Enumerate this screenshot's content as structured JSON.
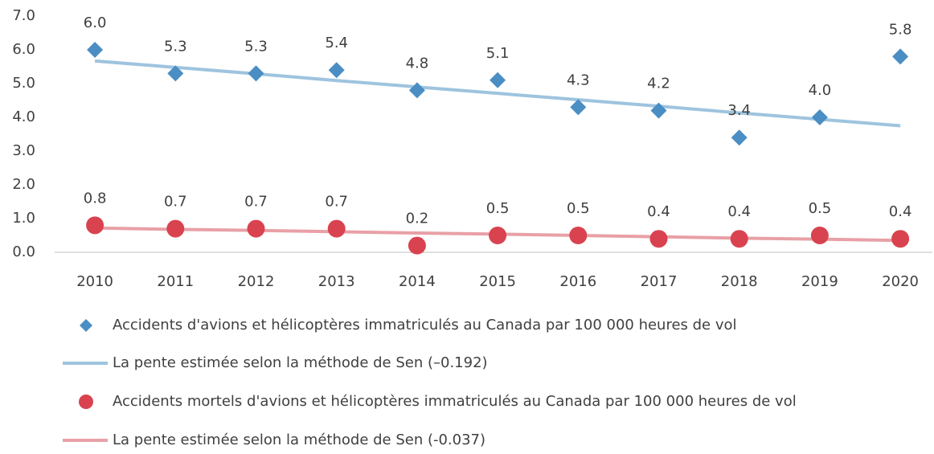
{
  "chart_data": {
    "type": "line",
    "categories": [
      "2010",
      "2011",
      "2012",
      "2013",
      "2014",
      "2015",
      "2016",
      "2017",
      "2018",
      "2019",
      "2020"
    ],
    "ylim": [
      0,
      7
    ],
    "yticks": [
      {
        "value": 0,
        "label": "0.0"
      },
      {
        "value": 1,
        "label": "1.0"
      },
      {
        "value": 2,
        "label": "2.0"
      },
      {
        "value": 3,
        "label": "3.0"
      },
      {
        "value": 4,
        "label": "4.0"
      },
      {
        "value": 5,
        "label": "5.0"
      },
      {
        "value": 6,
        "label": "6.0"
      },
      {
        "value": 7,
        "label": "7.0"
      }
    ],
    "grid": false,
    "series": [
      {
        "name": "Accidents d'avions et hélicoptères immatriculés au Canada par 100 000 heures de vol",
        "color": "#4a8ec4",
        "marker": "diamond",
        "values": [
          6.0,
          5.3,
          5.3,
          5.4,
          4.8,
          5.1,
          4.3,
          4.2,
          3.4,
          4.0,
          5.8
        ],
        "value_labels": [
          "6.0",
          "5.3",
          "5.3",
          "5.4",
          "4.8",
          "5.1",
          "4.3",
          "4.2",
          "3.4",
          "4.0",
          "5.8"
        ]
      },
      {
        "name": "La pente estimée selon la méthode de Sen (–0.192)",
        "color": "#9ec4de",
        "marker": "line",
        "values": [
          5.67,
          5.48,
          5.29,
          5.09,
          4.9,
          4.71,
          4.52,
          4.33,
          4.13,
          3.94,
          3.75
        ]
      },
      {
        "name": "Accidents mortels d'avions et hélicoptères immatriculés au Canada par 100 000 heures de vol",
        "color": "#d9434f",
        "marker": "circle",
        "values": [
          0.8,
          0.7,
          0.7,
          0.7,
          0.2,
          0.5,
          0.5,
          0.4,
          0.4,
          0.5,
          0.4
        ],
        "value_labels": [
          "0.8",
          "0.7",
          "0.7",
          "0.7",
          "0.2",
          "0.5",
          "0.5",
          "0.4",
          "0.4",
          "0.5",
          "0.4"
        ]
      },
      {
        "name": "La pente estimée selon la méthode de Sen (-0.037)",
        "color": "#e8a0a6",
        "marker": "line",
        "values": [
          0.72,
          0.68,
          0.65,
          0.61,
          0.57,
          0.54,
          0.5,
          0.46,
          0.42,
          0.39,
          0.35
        ]
      }
    ]
  }
}
